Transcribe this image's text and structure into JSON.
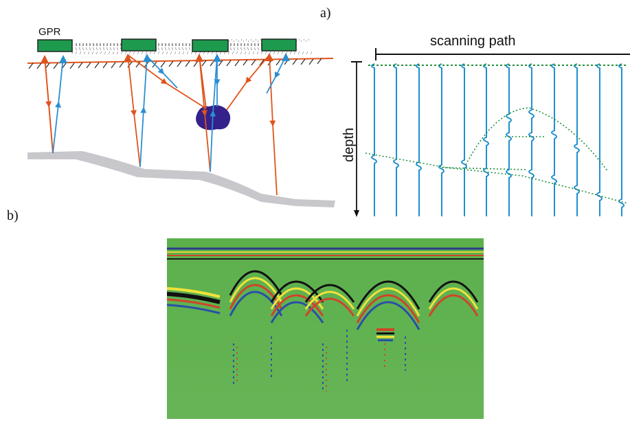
{
  "labels": {
    "panel_a": "a)",
    "panel_b": "b)",
    "gpr": "GPR",
    "scanning_path": "scanning path",
    "depth": "depth"
  },
  "colors": {
    "antenna": "#1e9a4e",
    "transmit_ray": "#e0531c",
    "receive_ray": "#2a8fd1",
    "object": "#34218a",
    "layer": "#c8c8cc",
    "trace": "#1e8fd0",
    "hyperbola": "#1f8f3a",
    "radargram_bg": "#5cb04c"
  }
}
